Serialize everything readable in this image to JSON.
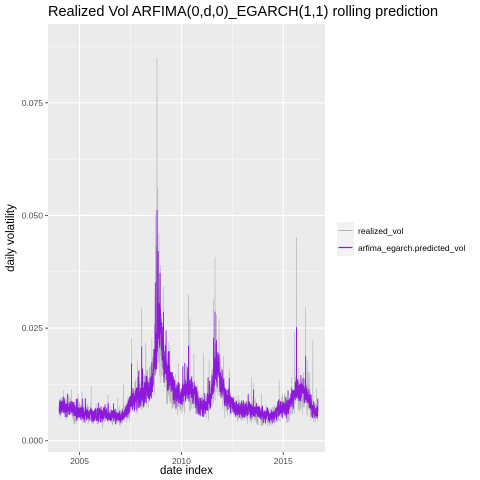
{
  "chart_data": {
    "type": "line",
    "title": "Realized Vol ARFIMA(0,d,0)_EGARCH(1,1) rolling prediction",
    "xlabel": "date index",
    "ylabel": "daily volatility",
    "xlim": [
      2003.45,
      2017.05
    ],
    "ylim": [
      -0.0025,
      0.0925
    ],
    "x_ticks": [
      2005,
      2010,
      2015
    ],
    "x_tick_labels": [
      "2005",
      "2010",
      "2015"
    ],
    "y_ticks": [
      0,
      0.025,
      0.05,
      0.075
    ],
    "y_tick_labels": [
      "0.000",
      "0.025",
      "0.050",
      "0.075"
    ],
    "grid": true,
    "legend": "right",
    "x_start": 2004.0,
    "x_end": 2016.7,
    "series": [
      {
        "name": "realized_vol",
        "color": "#b3b3b3",
        "anchors": [
          [
            2004.0,
            0.0075
          ],
          [
            2004.5,
            0.0072
          ],
          [
            2004.9,
            0.006
          ],
          [
            2005.3,
            0.0058
          ],
          [
            2005.8,
            0.0055
          ],
          [
            2006.3,
            0.0057
          ],
          [
            2006.7,
            0.0052
          ],
          [
            2007.0,
            0.005
          ],
          [
            2007.3,
            0.0065
          ],
          [
            2007.6,
            0.0088
          ],
          [
            2007.9,
            0.0105
          ],
          [
            2008.2,
            0.0112
          ],
          [
            2008.5,
            0.0118
          ],
          [
            2008.7,
            0.0165
          ],
          [
            2008.85,
            0.026
          ],
          [
            2009.0,
            0.022
          ],
          [
            2009.2,
            0.016
          ],
          [
            2009.5,
            0.012
          ],
          [
            2009.8,
            0.0098
          ],
          [
            2010.0,
            0.009
          ],
          [
            2010.3,
            0.0125
          ],
          [
            2010.6,
            0.01
          ],
          [
            2010.9,
            0.0075
          ],
          [
            2011.2,
            0.0072
          ],
          [
            2011.5,
            0.0105
          ],
          [
            2011.75,
            0.0165
          ],
          [
            2011.9,
            0.0135
          ],
          [
            2012.2,
            0.0088
          ],
          [
            2012.6,
            0.0075
          ],
          [
            2013.0,
            0.0063
          ],
          [
            2013.5,
            0.0066
          ],
          [
            2014.0,
            0.0055
          ],
          [
            2014.5,
            0.0052
          ],
          [
            2014.9,
            0.0075
          ],
          [
            2015.3,
            0.0072
          ],
          [
            2015.65,
            0.0115
          ],
          [
            2015.9,
            0.0098
          ],
          [
            2016.1,
            0.0105
          ],
          [
            2016.4,
            0.007
          ],
          [
            2016.7,
            0.0057
          ]
        ],
        "spikes": [
          [
            2004.2,
            0.0125
          ],
          [
            2004.6,
            0.0118
          ],
          [
            2005.3,
            0.0098
          ],
          [
            2006.4,
            0.0122
          ],
          [
            2007.15,
            0.0155
          ],
          [
            2007.55,
            0.025
          ],
          [
            2007.85,
            0.019
          ],
          [
            2008.05,
            0.0315
          ],
          [
            2008.25,
            0.0262
          ],
          [
            2008.55,
            0.0235
          ],
          [
            2008.72,
            0.052
          ],
          [
            2008.8,
            0.088
          ],
          [
            2008.84,
            0.0595
          ],
          [
            2008.9,
            0.0505
          ],
          [
            2008.98,
            0.045
          ],
          [
            2009.12,
            0.0385
          ],
          [
            2009.35,
            0.0245
          ],
          [
            2010.35,
            0.0425
          ],
          [
            2010.42,
            0.0285
          ],
          [
            2011.08,
            0.0235
          ],
          [
            2011.58,
            0.0365
          ],
          [
            2011.65,
            0.0415
          ],
          [
            2011.72,
            0.0325
          ],
          [
            2011.85,
            0.0305
          ],
          [
            2012.35,
            0.0175
          ],
          [
            2013.45,
            0.0165
          ],
          [
            2014.8,
            0.016
          ],
          [
            2015.55,
            0.028
          ],
          [
            2015.65,
            0.061
          ],
          [
            2016.1,
            0.0315
          ],
          [
            2016.45,
            0.0225
          ]
        ]
      },
      {
        "name": "arfima_egarch.predicted_vol",
        "color": "#8e18dc",
        "anchors": [
          [
            2004.0,
            0.0074
          ],
          [
            2004.5,
            0.0072
          ],
          [
            2004.9,
            0.0062
          ],
          [
            2005.3,
            0.006
          ],
          [
            2005.8,
            0.0057
          ],
          [
            2006.3,
            0.0059
          ],
          [
            2006.7,
            0.0055
          ],
          [
            2007.0,
            0.0052
          ],
          [
            2007.3,
            0.0066
          ],
          [
            2007.6,
            0.0088
          ],
          [
            2007.9,
            0.0104
          ],
          [
            2008.2,
            0.011
          ],
          [
            2008.5,
            0.0115
          ],
          [
            2008.7,
            0.017
          ],
          [
            2008.85,
            0.028
          ],
          [
            2009.0,
            0.0235
          ],
          [
            2009.2,
            0.0168
          ],
          [
            2009.5,
            0.0125
          ],
          [
            2009.8,
            0.0102
          ],
          [
            2010.0,
            0.0094
          ],
          [
            2010.3,
            0.0125
          ],
          [
            2010.6,
            0.0102
          ],
          [
            2010.9,
            0.0078
          ],
          [
            2011.2,
            0.0076
          ],
          [
            2011.5,
            0.0108
          ],
          [
            2011.75,
            0.017
          ],
          [
            2011.9,
            0.0138
          ],
          [
            2012.2,
            0.0092
          ],
          [
            2012.6,
            0.0078
          ],
          [
            2013.0,
            0.0066
          ],
          [
            2013.5,
            0.0068
          ],
          [
            2014.0,
            0.0058
          ],
          [
            2014.5,
            0.0055
          ],
          [
            2014.9,
            0.0075
          ],
          [
            2015.3,
            0.0074
          ],
          [
            2015.65,
            0.0118
          ],
          [
            2015.9,
            0.0102
          ],
          [
            2016.1,
            0.0108
          ],
          [
            2016.4,
            0.0074
          ],
          [
            2016.7,
            0.006
          ]
        ],
        "spikes": [
          [
            2004.2,
            0.0105
          ],
          [
            2005.3,
            0.0088
          ],
          [
            2006.4,
            0.0095
          ],
          [
            2007.55,
            0.0185
          ],
          [
            2008.05,
            0.022
          ],
          [
            2008.72,
            0.036
          ],
          [
            2008.8,
            0.0525
          ],
          [
            2008.86,
            0.044
          ],
          [
            2008.95,
            0.0385
          ],
          [
            2009.12,
            0.031
          ],
          [
            2009.35,
            0.0215
          ],
          [
            2010.35,
            0.0255
          ],
          [
            2011.58,
            0.0255
          ],
          [
            2011.65,
            0.029
          ],
          [
            2011.72,
            0.0245
          ],
          [
            2012.35,
            0.015
          ],
          [
            2015.65,
            0.0315
          ],
          [
            2016.1,
            0.0195
          ]
        ]
      }
    ]
  }
}
